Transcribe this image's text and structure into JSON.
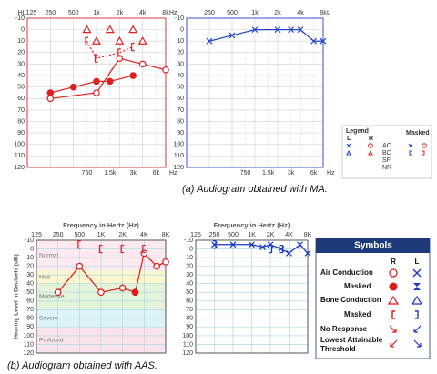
{
  "chart_data": [
    {
      "type": "line",
      "xlog": true,
      "y_inverted": true,
      "grid": true,
      "frame_color": "#d83a3a",
      "grid_color": "#d0d0d0",
      "xlim": [
        125,
        8000
      ],
      "ylim": [
        -10,
        120
      ],
      "xticks": [
        {
          "value": 125,
          "label": "HL125"
        },
        250,
        500,
        {
          "value": 1000,
          "label": "1k"
        },
        {
          "value": 2000,
          "label": "2k"
        },
        {
          "value": 4000,
          "label": "4k"
        },
        {
          "value": 8000,
          "label": "8k"
        }
      ],
      "x2ticks": [
        750,
        {
          "value": 1500,
          "label": "1.5k"
        },
        {
          "value": 3000,
          "label": "3k"
        },
        {
          "value": 6000,
          "label": "6k"
        }
      ],
      "x_unit_top": "Hz",
      "x_unit_bottom": "Hz",
      "yticks": [
        -10,
        0,
        10,
        20,
        30,
        40,
        50,
        60,
        70,
        80,
        90,
        100,
        110,
        120
      ],
      "series": [
        {
          "marker": "circle",
          "line": "solid",
          "color": "#e02020",
          "x": [
            250,
            1000,
            2000,
            4000,
            8000
          ],
          "values": [
            60,
            55,
            25,
            30,
            35
          ]
        },
        {
          "marker": "filled-circle",
          "line": "solid",
          "color": "#e02020",
          "x": [
            250,
            500,
            1000,
            1500,
            3000
          ],
          "values": [
            55,
            50,
            45,
            45,
            40
          ]
        },
        {
          "marker": "triangle",
          "line": "none",
          "color": "#e02020",
          "x": [
            750,
            1000,
            1500,
            2000,
            3000,
            4000
          ],
          "values": [
            0,
            10,
            0,
            10,
            0,
            10
          ]
        },
        {
          "marker": "bracket-left",
          "line": "dashed",
          "color": "#e02020",
          "x": [
            750,
            1000,
            2000,
            3000
          ],
          "values": [
            10,
            25,
            20,
            15
          ]
        }
      ]
    },
    {
      "type": "line",
      "xlog": true,
      "y_inverted": true,
      "grid": true,
      "frame_color": "#3355cc",
      "grid_color": "#d0d0d0",
      "xlim": [
        125,
        8000
      ],
      "ylim": [
        -10,
        120
      ],
      "xticks": [
        250,
        500,
        {
          "value": 1000,
          "label": "1k"
        },
        {
          "value": 2000,
          "label": "2k"
        },
        {
          "value": 4000,
          "label": "4k"
        },
        {
          "value": 8000,
          "label": "8k"
        }
      ],
      "x2ticks": [
        750,
        {
          "value": 1500,
          "label": "1.5k"
        },
        {
          "value": 3000,
          "label": "3k"
        },
        {
          "value": 6000,
          "label": "6k"
        }
      ],
      "x_unit_top": "L",
      "x_unit_bottom": "Hz",
      "yticks": [
        -10,
        0,
        10,
        20,
        30,
        40,
        50,
        60,
        70,
        80,
        90,
        100,
        110,
        120
      ],
      "series": [
        {
          "marker": "x",
          "line": "solid",
          "color": "#2244cc",
          "x": [
            250,
            500,
            1000,
            2000,
            3000,
            4000,
            6000,
            8000
          ],
          "values": [
            10,
            5,
            0,
            0,
            0,
            0,
            10,
            10
          ]
        }
      ]
    },
    {
      "type": "line",
      "xlog": true,
      "y_inverted": true,
      "grid": true,
      "frame_color": "#555555",
      "grid_color": "#9fd8e0",
      "title": "Frequency in Hertz (Hz)",
      "ylabel": "Hearing Level in Decibels (dB)",
      "xlim": [
        125,
        8000
      ],
      "ylim": [
        -10,
        120
      ],
      "xticks": [
        125,
        250,
        500,
        {
          "value": 1000,
          "label": "1K"
        },
        {
          "value": 2000,
          "label": "2K"
        },
        {
          "value": 4000,
          "label": "4K"
        },
        {
          "value": 8000,
          "label": "8K"
        }
      ],
      "yticks": [
        -10,
        0,
        10,
        20,
        30,
        40,
        50,
        60,
        70,
        80,
        90,
        100,
        110,
        120
      ],
      "bands": [
        {
          "label": "Normal",
          "from": -10,
          "to": 25,
          "color": "#fde9ef"
        },
        {
          "label": "Mild",
          "from": 25,
          "to": 40,
          "color": "#fdf6cf"
        },
        {
          "label": "Moderate",
          "from": 40,
          "to": 70,
          "color": "#e3f4da"
        },
        {
          "label": "Severe",
          "from": 70,
          "to": 90,
          "color": "#ddf3f7"
        },
        {
          "label": "Profound",
          "from": 90,
          "to": 120,
          "color": "#fbe3ee"
        }
      ],
      "series": [
        {
          "marker": "circle",
          "line": "solid",
          "color": "#e01818",
          "x": [
            250,
            500,
            1000,
            2000,
            3000,
            4000,
            6000,
            8000
          ],
          "values": [
            50,
            20,
            50,
            45,
            50,
            5,
            20,
            15
          ]
        },
        {
          "marker": "filled-circle",
          "line": "none",
          "color": "#e01818",
          "x": [
            3000
          ],
          "values": [
            50
          ]
        },
        {
          "marker": "bracket-left",
          "line": "none",
          "color": "#e01818",
          "x": [
            500,
            1000,
            2000,
            4000
          ],
          "values": [
            -5,
            0,
            0,
            0
          ]
        }
      ]
    },
    {
      "type": "line",
      "xlog": true,
      "y_inverted": true,
      "grid": true,
      "frame_color": "#555555",
      "grid_color": "#9fd8e0",
      "title": "Frequency in Hertz (Hz)",
      "xlim": [
        125,
        8000
      ],
      "ylim": [
        -10,
        120
      ],
      "xticks": [
        125,
        250,
        500,
        {
          "value": 1000,
          "label": "1K"
        },
        {
          "value": 2000,
          "label": "2K"
        },
        {
          "value": 4000,
          "label": "4K"
        },
        {
          "value": 8000,
          "label": "8K"
        }
      ],
      "yticks": [
        -10,
        0,
        10,
        20,
        30,
        40,
        50,
        60,
        70,
        80,
        90,
        100,
        110,
        120
      ],
      "series": [
        {
          "marker": "x",
          "line": "solid",
          "color": "#1a36c8",
          "x": [
            250,
            500,
            1000,
            1500,
            2000,
            3000,
            4000,
            6000,
            8000
          ],
          "values": [
            -5,
            -5,
            -5,
            -2,
            -5,
            0,
            5,
            -5,
            5
          ]
        },
        {
          "marker": "bracket-right",
          "line": "none",
          "color": "#1a36c8",
          "x": [
            250,
            2000,
            3000
          ],
          "values": [
            -5,
            0,
            0
          ]
        }
      ]
    }
  ],
  "legend_a": {
    "title": "Legend",
    "masked": "Masked",
    "left": "L",
    "right": "R",
    "rows": [
      "AC",
      "BC",
      "SF",
      "NR"
    ]
  },
  "symbols_b": {
    "title": "Symbols",
    "right": "R",
    "left": "L",
    "rows": [
      [
        "Air Conduction"
      ],
      [
        "Masked"
      ],
      [
        "Bone Conduction"
      ],
      [
        "Masked"
      ],
      [
        "No Response"
      ],
      [
        "Lowest Attainable",
        "Threshold"
      ]
    ]
  },
  "captions": [
    "(a) Audiogram obtained with MA.",
    "(b) Audiogram obtained with AAS."
  ]
}
